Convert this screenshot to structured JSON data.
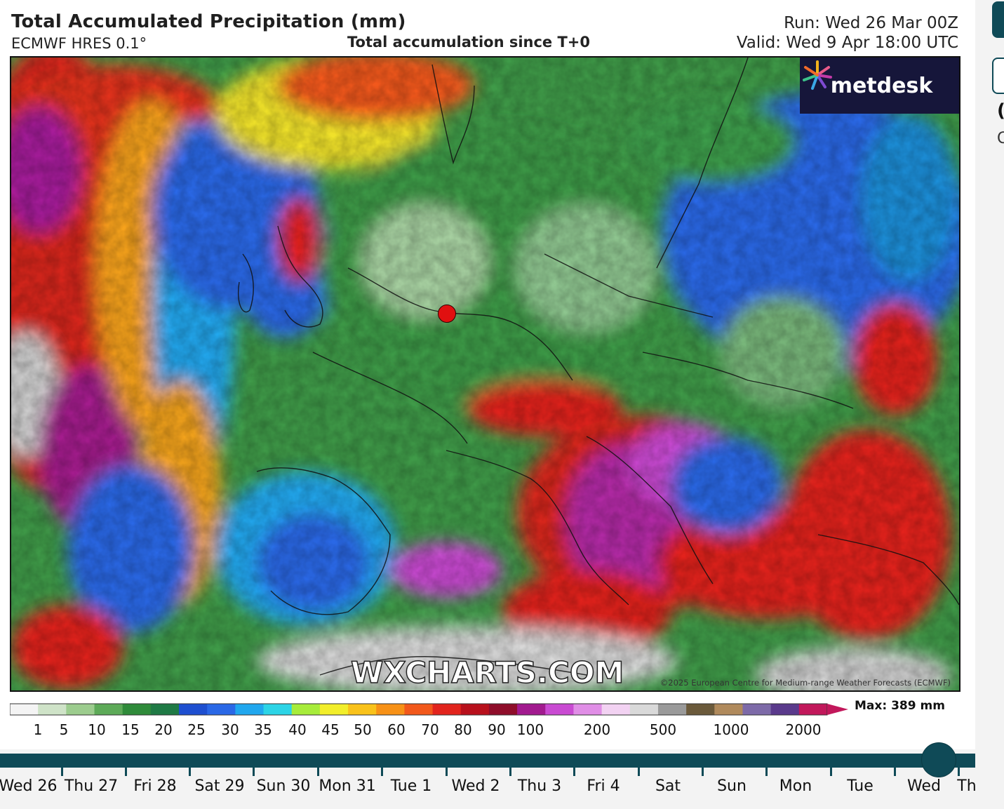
{
  "header": {
    "title": "Total Accumulated Precipitation (mm)",
    "model": "ECMWF HRES 0.1°",
    "subtitle": "Total accumulation since T+0",
    "run": "Run: Wed 26 Mar 00Z",
    "valid": "Valid: Wed 9 Apr 18:00 UTC"
  },
  "map": {
    "logo_text": "metdesk",
    "watermark": "WXCHARTS.COM",
    "copyright": "©2025 European Centre for Medium-range Weather Forecasts (ECMWF)",
    "marker_color": "#e01010"
  },
  "scale": {
    "max_label": "Max: 389 mm",
    "tick_labels": [
      "1",
      "5",
      "10",
      "15",
      "20",
      "25",
      "30",
      "35",
      "40",
      "45",
      "50",
      "60",
      "70",
      "80",
      "90",
      "100",
      "200",
      "500",
      "1000",
      "2000"
    ],
    "colors": [
      "#f4f4f4",
      "#cfe3c8",
      "#9ccc8e",
      "#5daa58",
      "#2f8b3a",
      "#1f7a45",
      "#1e4fd0",
      "#2a68e6",
      "#20a7ee",
      "#2cd4e6",
      "#a7ec3a",
      "#f2ee2a",
      "#f9c21a",
      "#f79116",
      "#f2581b",
      "#e2241d",
      "#b8101c",
      "#8f0d2a",
      "#a21a8f",
      "#c94ad2",
      "#e08ee6",
      "#f2d2f2",
      "#d9d9d9",
      "#9a9a9a",
      "#6b5a3b",
      "#b08a5c",
      "#7d6aa8",
      "#5a3a8c",
      "#c2185b"
    ]
  },
  "timeline": {
    "labels": [
      "Wed 26",
      "Thu 27",
      "Fri 28",
      "Sat 29",
      "Sun 30",
      "Mon 31",
      "Tue 1",
      "Wed 2",
      "Thu 3",
      "Fri 4",
      "Sat",
      "Sun",
      "Mon",
      "Tue",
      "Wed",
      "Th"
    ],
    "selected": "Wed"
  },
  "side": {
    "text1": "(",
    "text2": "C"
  }
}
